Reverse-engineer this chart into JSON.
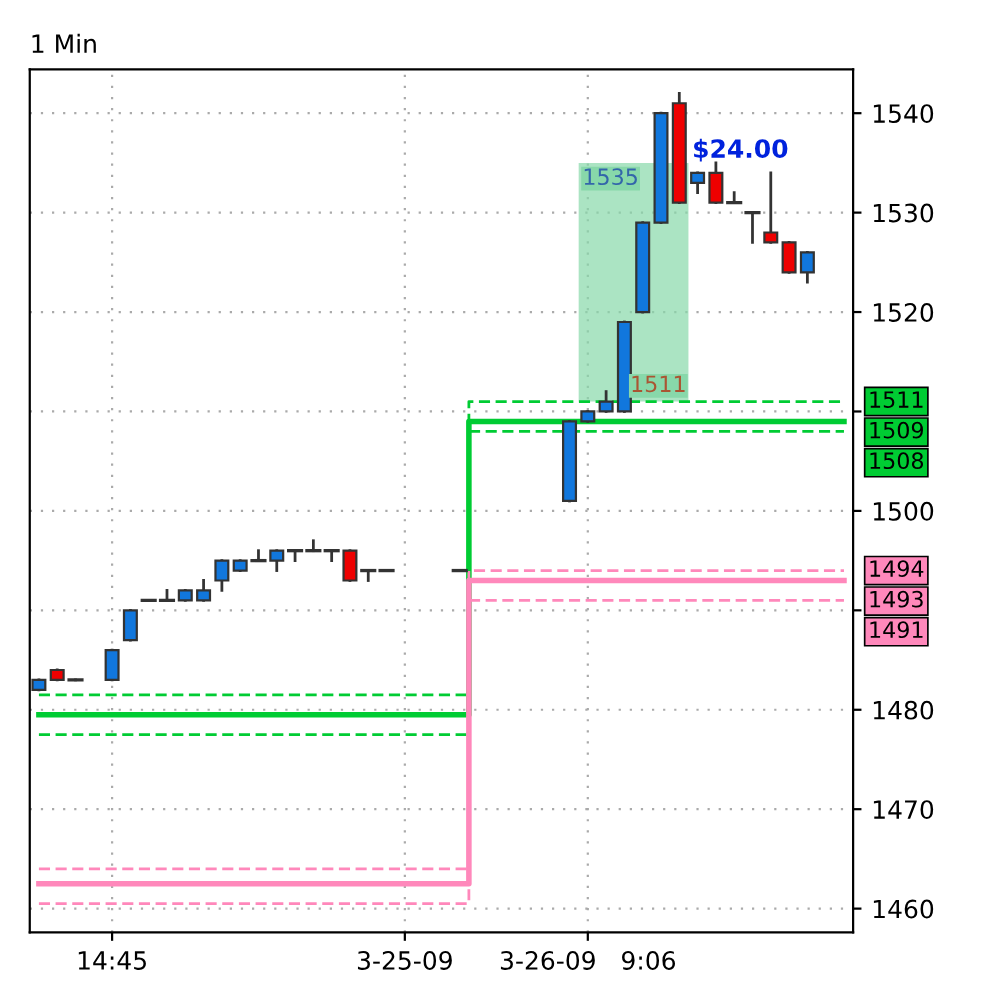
{
  "chart_data": {
    "type": "candlestick",
    "title": "1 Min",
    "categories": [
      null,
      null,
      null,
      null,
      "14:45",
      null,
      null,
      null,
      null,
      null,
      null,
      null,
      null,
      null,
      null,
      null,
      null,
      null,
      null,
      null,
      "3-25-09",
      null,
      null,
      null,
      null,
      null,
      null,
      null,
      null,
      null,
      "3-26-09   9:06",
      null,
      null,
      null,
      null,
      null,
      null,
      null,
      null,
      null,
      null,
      null,
      null,
      null,
      null
    ],
    "ohlc": [
      [
        1482,
        1483,
        1482,
        1483
      ],
      [
        1484,
        1484,
        1483,
        1483
      ],
      [
        1483,
        1483,
        1483,
        1483
      ],
      null,
      [
        1483,
        1486,
        1483,
        1486
      ],
      [
        1487,
        1490,
        1487,
        1490
      ],
      [
        1491,
        1491,
        1491,
        1491
      ],
      [
        1491,
        1492,
        1491,
        1491
      ],
      [
        1491,
        1492,
        1491,
        1492
      ],
      [
        1491,
        1493,
        1491,
        1492
      ],
      [
        1493,
        1495,
        1492,
        1495
      ],
      [
        1494,
        1495,
        1494,
        1495
      ],
      [
        1495,
        1496,
        1495,
        1495
      ],
      [
        1495,
        1496,
        1494,
        1496
      ],
      [
        1496,
        1496,
        1495,
        1496
      ],
      [
        1496,
        1497,
        1496,
        1496
      ],
      [
        1496,
        1496,
        1495,
        1496
      ],
      [
        1496,
        1496,
        1493,
        1493
      ],
      [
        1494,
        1494,
        1493,
        1494
      ],
      [
        1494,
        1494,
        1494,
        1494
      ],
      null,
      null,
      null,
      [
        1494,
        1494,
        1494,
        1494
      ],
      null,
      null,
      null,
      null,
      null,
      [
        1501,
        1509,
        1501,
        1509
      ],
      [
        1509,
        1510,
        1509,
        1510
      ],
      [
        1510,
        1512,
        1510,
        1511
      ],
      [
        1510,
        1519,
        1510,
        1519
      ],
      [
        1520,
        1529,
        1520,
        1529
      ],
      [
        1529,
        1540,
        1529,
        1540
      ],
      [
        1541,
        1542,
        1531,
        1531
      ],
      [
        1533,
        1534,
        1532,
        1534
      ],
      [
        1534,
        1535,
        1531,
        1531
      ],
      [
        1531,
        1532,
        1531,
        1531
      ],
      [
        1530,
        1530,
        1527,
        1530
      ],
      [
        1528,
        1534,
        1527,
        1527
      ],
      [
        1527,
        1527,
        1524,
        1524
      ],
      [
        1524,
        1526,
        1523,
        1526
      ],
      null,
      null
    ],
    "series": [
      {
        "type": "step",
        "name": "1511",
        "color": "#00cc33",
        "line_style": "dashed",
        "values": [
          1481.5,
          1481.5,
          1481.5,
          1481.5,
          1481.5,
          1481.5,
          1481.5,
          1481.5,
          1481.5,
          1481.5,
          1481.5,
          1481.5,
          1481.5,
          1481.5,
          1481.5,
          1481.5,
          1481.5,
          1481.5,
          1481.5,
          1481.5,
          1481.5,
          1481.5,
          1481.5,
          1481.5,
          1511,
          1511,
          1511,
          1511,
          1511,
          1511,
          1511,
          1511,
          1511,
          1511,
          1511,
          1511,
          1511,
          1511,
          1511,
          1511,
          1511,
          1511,
          1511,
          1511,
          1511
        ]
      },
      {
        "type": "step",
        "name": "1509",
        "color": "#00cc33",
        "line_style": "solid",
        "values": [
          1479.5,
          1479.5,
          1479.5,
          1479.5,
          1479.5,
          1479.5,
          1479.5,
          1479.5,
          1479.5,
          1479.5,
          1479.5,
          1479.5,
          1479.5,
          1479.5,
          1479.5,
          1479.5,
          1479.5,
          1479.5,
          1479.5,
          1479.5,
          1479.5,
          1479.5,
          1479.5,
          1479.5,
          1509,
          1509,
          1509,
          1509,
          1509,
          1509,
          1509,
          1509,
          1509,
          1509,
          1509,
          1509,
          1509,
          1509,
          1509,
          1509,
          1509,
          1509,
          1509,
          1509,
          1509
        ]
      },
      {
        "type": "step",
        "name": "1508",
        "color": "#00cc33",
        "line_style": "dashed",
        "values": [
          1477.5,
          1477.5,
          1477.5,
          1477.5,
          1477.5,
          1477.5,
          1477.5,
          1477.5,
          1477.5,
          1477.5,
          1477.5,
          1477.5,
          1477.5,
          1477.5,
          1477.5,
          1477.5,
          1477.5,
          1477.5,
          1477.5,
          1477.5,
          1477.5,
          1477.5,
          1477.5,
          1477.5,
          1508,
          1508,
          1508,
          1508,
          1508,
          1508,
          1508,
          1508,
          1508,
          1508,
          1508,
          1508,
          1508,
          1508,
          1508,
          1508,
          1508,
          1508,
          1508,
          1508,
          1508
        ]
      },
      {
        "type": "step",
        "name": "1494",
        "color": "#ff88bb",
        "line_style": "dashed",
        "values": [
          1464,
          1464,
          1464,
          1464,
          1464,
          1464,
          1464,
          1464,
          1464,
          1464,
          1464,
          1464,
          1464,
          1464,
          1464,
          1464,
          1464,
          1464,
          1464,
          1464,
          1464,
          1464,
          1464,
          1464,
          1494,
          1494,
          1494,
          1494,
          1494,
          1494,
          1494,
          1494,
          1494,
          1494,
          1494,
          1494,
          1494,
          1494,
          1494,
          1494,
          1494,
          1494,
          1494,
          1494,
          1494
        ]
      },
      {
        "type": "step",
        "name": "1493",
        "color": "#ff88bb",
        "line_style": "solid",
        "values": [
          1462.5,
          1462.5,
          1462.5,
          1462.5,
          1462.5,
          1462.5,
          1462.5,
          1462.5,
          1462.5,
          1462.5,
          1462.5,
          1462.5,
          1462.5,
          1462.5,
          1462.5,
          1462.5,
          1462.5,
          1462.5,
          1462.5,
          1462.5,
          1462.5,
          1462.5,
          1462.5,
          1462.5,
          1493,
          1493,
          1493,
          1493,
          1493,
          1493,
          1493,
          1493,
          1493,
          1493,
          1493,
          1493,
          1493,
          1493,
          1493,
          1493,
          1493,
          1493,
          1493,
          1493,
          1493
        ]
      },
      {
        "type": "step",
        "name": "1491",
        "color": "#ff88bb",
        "line_style": "dashed",
        "values": [
          1460.5,
          1460.5,
          1460.5,
          1460.5,
          1460.5,
          1460.5,
          1460.5,
          1460.5,
          1460.5,
          1460.5,
          1460.5,
          1460.5,
          1460.5,
          1460.5,
          1460.5,
          1460.5,
          1460.5,
          1460.5,
          1460.5,
          1460.5,
          1460.5,
          1460.5,
          1460.5,
          1460.5,
          1491,
          1491,
          1491,
          1491,
          1491,
          1491,
          1491,
          1491,
          1491,
          1491,
          1491,
          1491,
          1491,
          1491,
          1491,
          1491,
          1491,
          1491,
          1491,
          1491,
          1491
        ]
      }
    ],
    "bands": [
      {
        "axis": "y",
        "from": 1511,
        "to": 1535,
        "color": "#88d8aa"
      }
    ],
    "annotations": [
      "$24.00",
      "1535",
      "1511"
    ],
    "ylim": [
      1457.6,
      1544.4
    ],
    "yticks": [
      1460,
      1470,
      1480,
      {
        "value": 1490,
        "label": null
      },
      1500,
      {
        "value": 1510,
        "label": null
      },
      1520,
      1530,
      1540
    ],
    "grid": true,
    "legend": "right"
  }
}
